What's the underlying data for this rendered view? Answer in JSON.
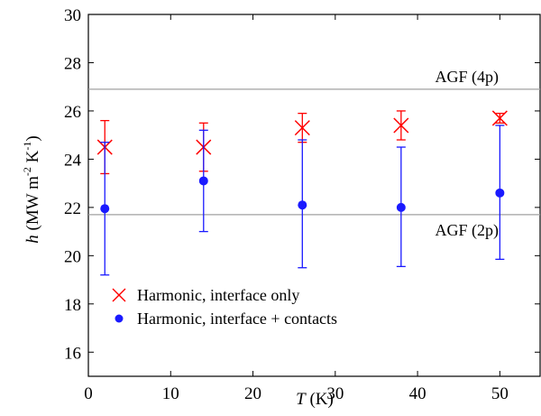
{
  "chart_data": {
    "type": "scatter",
    "xlabel": {
      "var": "T",
      "unit": " (K)"
    },
    "ylabel": {
      "var": "h",
      "unit_pre": " (MW m",
      "sup1": "-2",
      "mid": " K",
      "sup2": "-1",
      "post": ")"
    },
    "xlim": [
      0,
      55
    ],
    "ylim": [
      15,
      30
    ],
    "xticks": [
      0,
      10,
      20,
      30,
      40,
      50
    ],
    "yticks": [
      16,
      18,
      20,
      22,
      24,
      26,
      28,
      30
    ],
    "grid": false,
    "legend": "bottom-left",
    "reference_lines": [
      {
        "label": "AGF (4p)",
        "y": 26.9,
        "color": "#a0a0a0"
      },
      {
        "label": "AGF (2p)",
        "y": 21.7,
        "color": "#a0a0a0"
      }
    ],
    "series": [
      {
        "name": "Harmonic, interface only",
        "marker": "x",
        "color": "#ff0000",
        "x": [
          2,
          14,
          26,
          38,
          50
        ],
        "y": [
          24.5,
          24.5,
          25.3,
          25.4,
          25.7
        ],
        "err_low": [
          23.4,
          23.5,
          24.7,
          24.8,
          25.5
        ],
        "err_high": [
          25.6,
          25.5,
          25.9,
          26.0,
          25.9
        ]
      },
      {
        "name": "Harmonic, interface + contacts",
        "marker": "circle",
        "color": "#1a1aff",
        "x": [
          2,
          14,
          26,
          38,
          50
        ],
        "y": [
          21.95,
          23.1,
          22.1,
          22.0,
          22.6
        ],
        "err_low": [
          19.2,
          21.0,
          19.5,
          19.55,
          19.85
        ],
        "err_high": [
          24.7,
          25.2,
          24.8,
          24.5,
          25.4
        ]
      }
    ]
  }
}
